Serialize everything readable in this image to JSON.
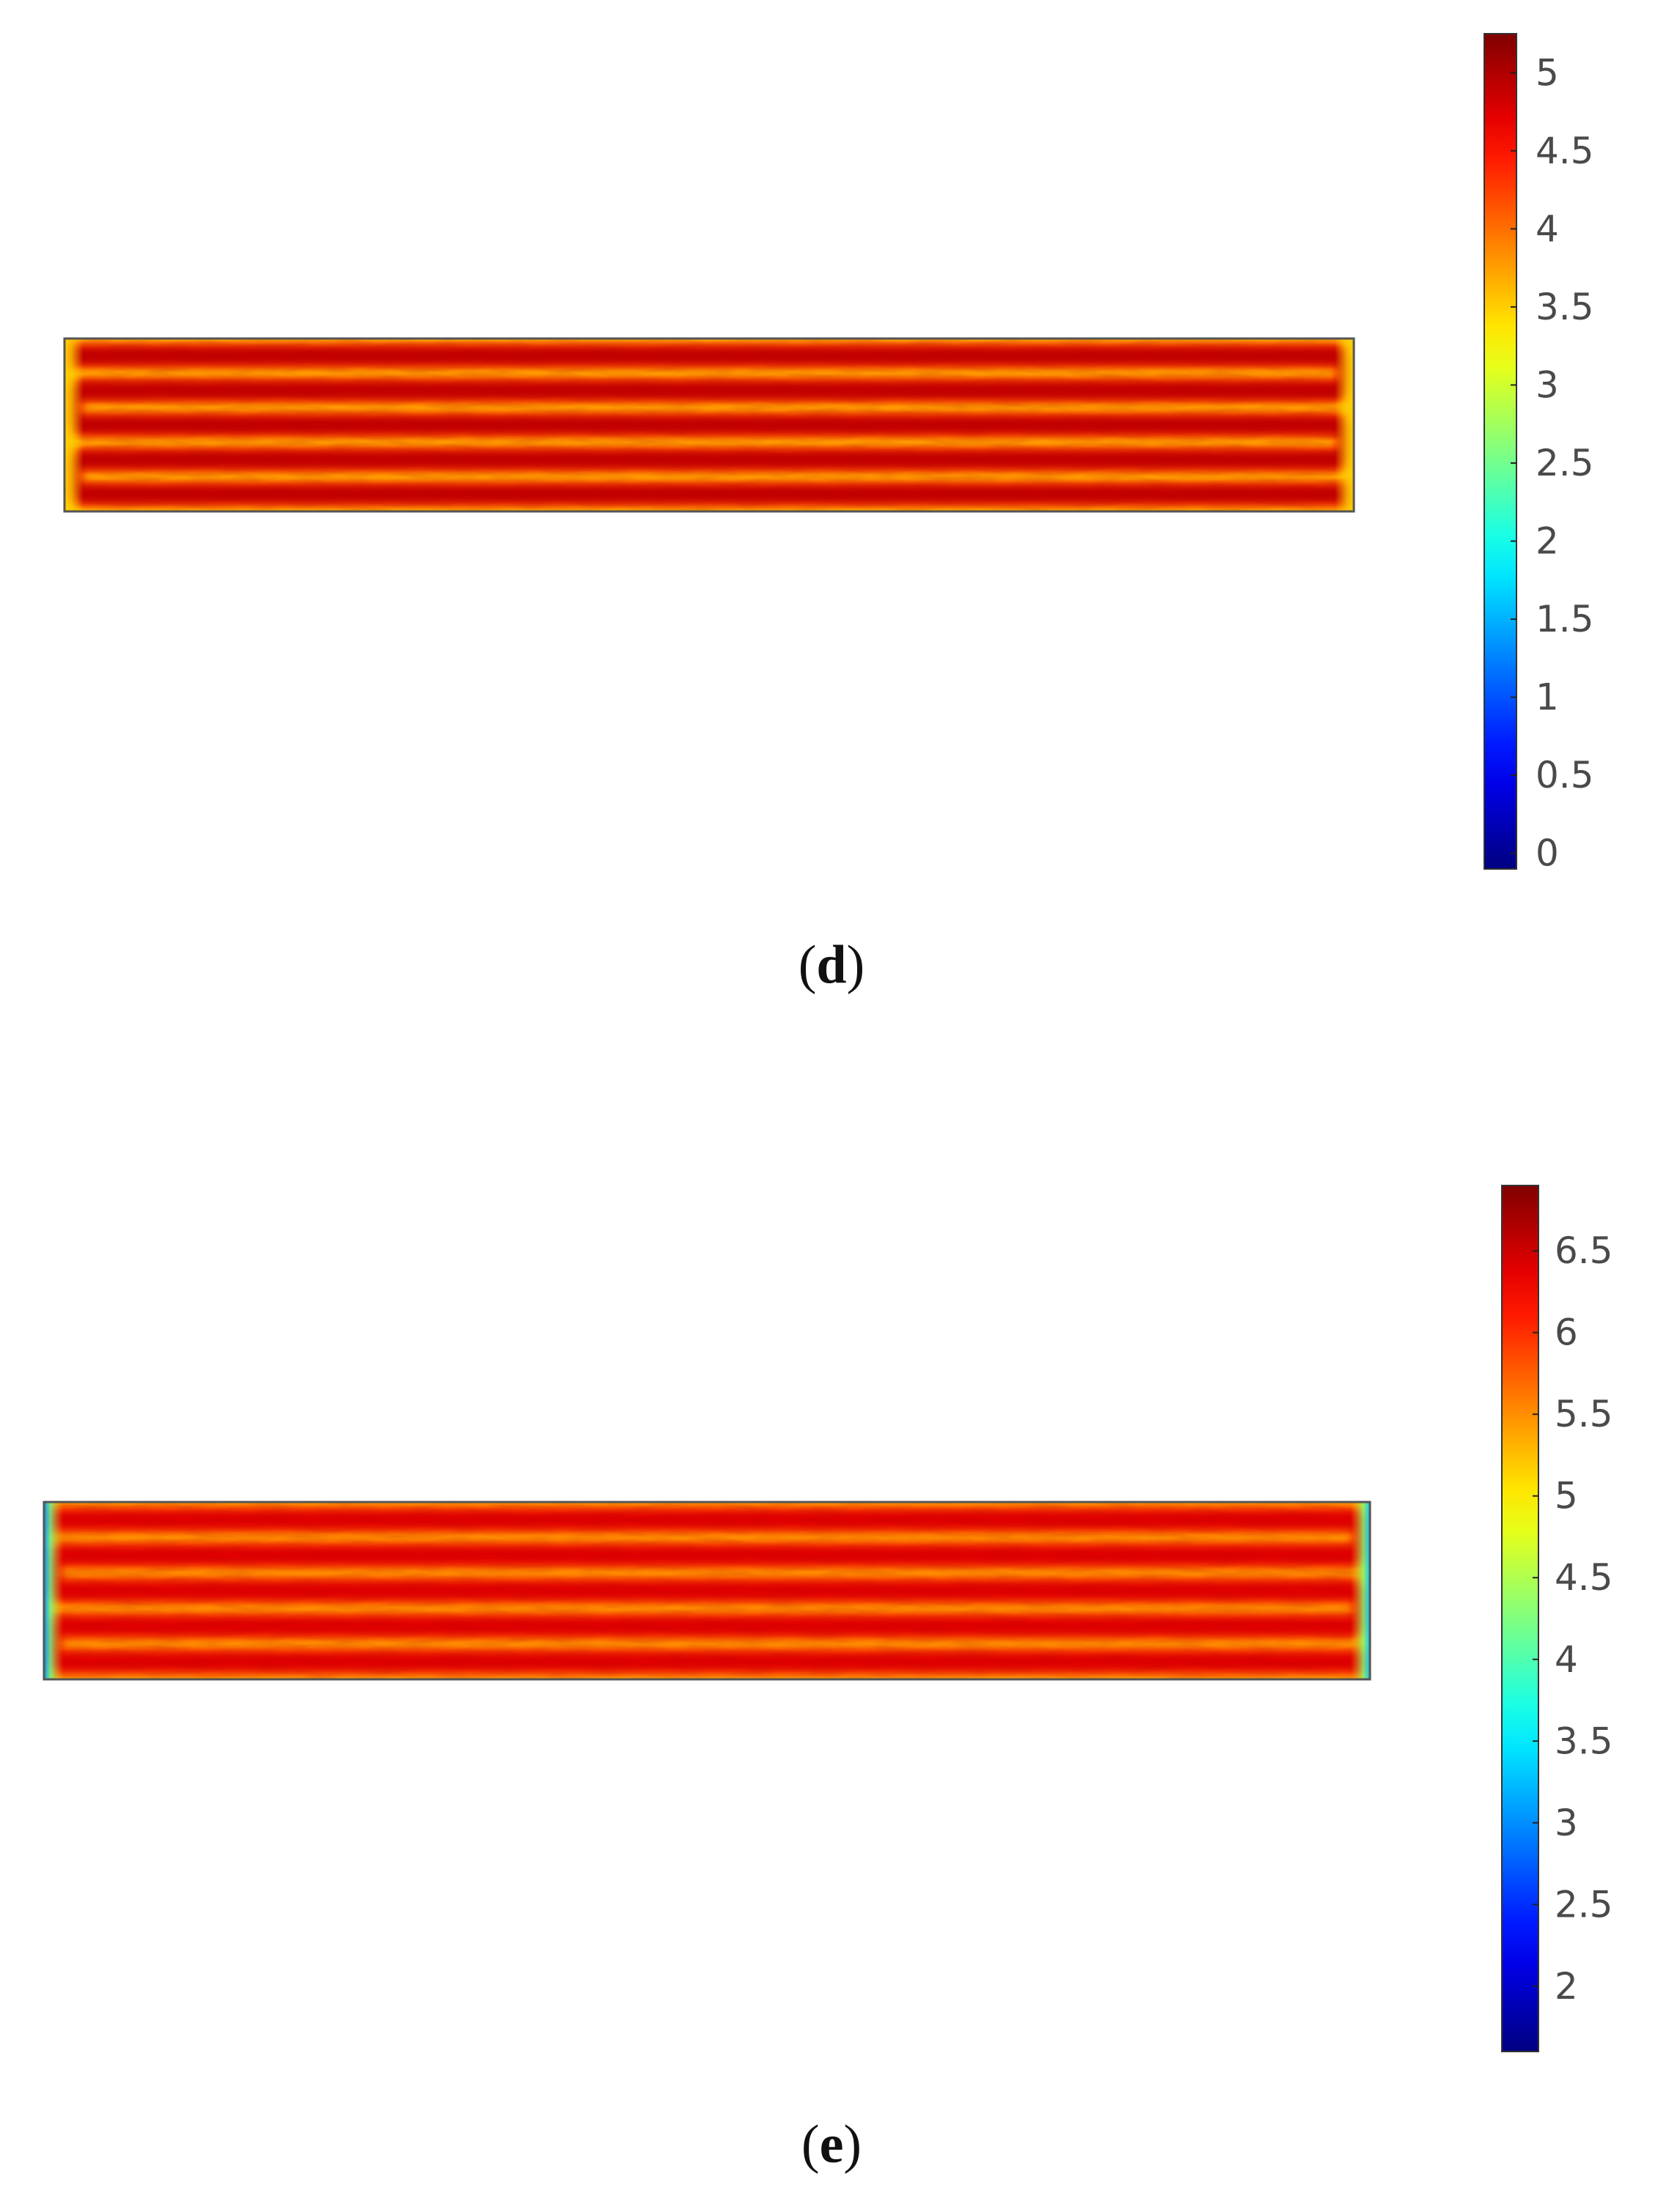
{
  "chart_data": [
    {
      "type": "heatmap",
      "panel_label": "d",
      "caption_open": "(",
      "caption_close": ")",
      "colormap": "jet",
      "colorbar": {
        "range": [
          -0.1,
          5.25
        ],
        "ticks": [
          "0",
          "0.5",
          "1",
          "1.5",
          "2",
          "2.5",
          "3",
          "3.5",
          "4",
          "4.5",
          "5"
        ],
        "tick_values": [
          0,
          0.5,
          1,
          1.5,
          2,
          2.5,
          3,
          3.5,
          4,
          4.5,
          5
        ]
      },
      "field": {
        "description_pattern": "serpentine",
        "channel_value": 4.9,
        "rib_value": 3.5,
        "left_edge_value": 3.5,
        "right_edge_value": 3.5,
        "passes": 5
      }
    },
    {
      "type": "heatmap",
      "panel_label": "e",
      "caption_open": "(",
      "caption_close": ")",
      "colormap": "jet",
      "colorbar": {
        "range": [
          1.6,
          6.9
        ],
        "ticks": [
          "2",
          "2.5",
          "3",
          "3.5",
          "4",
          "4.5",
          "5",
          "5.5",
          "6",
          "6.5"
        ],
        "tick_values": [
          2,
          2.5,
          3,
          3.5,
          4,
          4.5,
          5,
          5.5,
          6,
          6.5
        ]
      },
      "field": {
        "description_pattern": "serpentine",
        "channel_value": 6.4,
        "rib_value": 5.3,
        "left_edge_value": 3.0,
        "right_edge_value": 3.3,
        "passes": 5
      }
    }
  ]
}
